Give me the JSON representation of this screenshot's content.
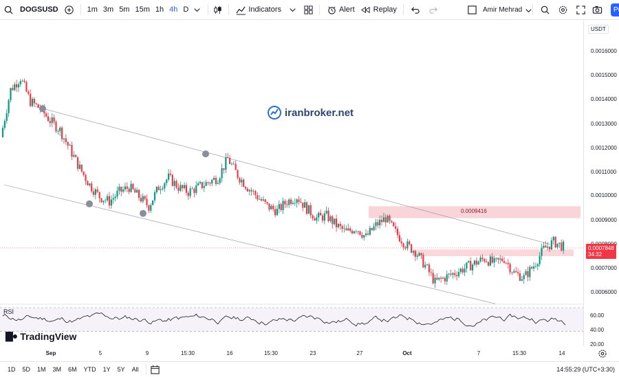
{
  "toolbar": {
    "symbol": "DOGSUSD",
    "timeframes": [
      "1m",
      "3m",
      "5m",
      "15m",
      "1h",
      "4h",
      "D"
    ],
    "active_timeframe": "4h",
    "indicators_label": "Indicators",
    "alert_label": "Alert",
    "replay_label": "Replay",
    "user_name": "Amir Mehrad",
    "publish_label": "Pu"
  },
  "watermark": {
    "text": "iranbroker.net"
  },
  "price_axis": {
    "unit": "USDT",
    "ticks": [
      "0.0016000",
      "0.0015000",
      "0.0014000",
      "0.0013000",
      "0.0012000",
      "0.0011000",
      "0.0010000",
      "0.0009000",
      "0.0008000",
      "0.0007000",
      "0.0006000"
    ],
    "last_price": "0.0007848",
    "countdown": "34:32"
  },
  "annotations": {
    "zone_price": "0.0009416"
  },
  "rsi": {
    "label": "RSI",
    "ticks": [
      "60.00",
      "40.00",
      "20.00"
    ]
  },
  "branding": {
    "logo_text": "TradingView"
  },
  "time_axis": {
    "labels": [
      "Sep",
      "5",
      "9",
      "15:30",
      "16",
      "15:30",
      "23",
      "27",
      "Oct",
      "7",
      "15:30",
      "14"
    ]
  },
  "bottom_bar": {
    "ranges": [
      "1D",
      "5D",
      "1M",
      "3M",
      "6M",
      "YTD",
      "1Y",
      "5Y",
      "All"
    ],
    "clock": "14:55:29 (UTC+3:30)"
  },
  "colors": {
    "up": "#089981",
    "down": "#f23645",
    "zone": "#f7c6cc",
    "accent": "#2962ff"
  },
  "chart_data": {
    "type": "candlestick",
    "symbol": "DOGSUSD",
    "interval": "4h",
    "ylim": [
      0.00055,
      0.00167
    ],
    "closes_approx": [
      0.00125,
      0.00145,
      0.0015,
      0.0014,
      0.00137,
      0.00132,
      0.00128,
      0.0012,
      0.00112,
      0.00105,
      0.001,
      0.00098,
      0.00102,
      0.00104,
      0.001,
      0.00096,
      0.00104,
      0.00108,
      0.00104,
      0.00102,
      0.00104,
      0.00106,
      0.00108,
      0.00116,
      0.00109,
      0.00104,
      0.001,
      0.00096,
      0.00094,
      0.00098,
      0.001,
      0.00095,
      0.00091,
      0.00092,
      0.00088,
      0.00085,
      0.00087,
      0.00083,
      0.00088,
      0.00091,
      0.00085,
      0.0008,
      0.00077,
      0.00071,
      0.00064,
      0.00066,
      0.00068,
      0.0007,
      0.00072,
      0.00074,
      0.00072,
      0.00074,
      0.00068,
      0.00066,
      0.00071,
      0.00078,
      0.00081,
      0.00079
    ],
    "zone_price": 0.0009416,
    "last_price": 0.0007848
  }
}
